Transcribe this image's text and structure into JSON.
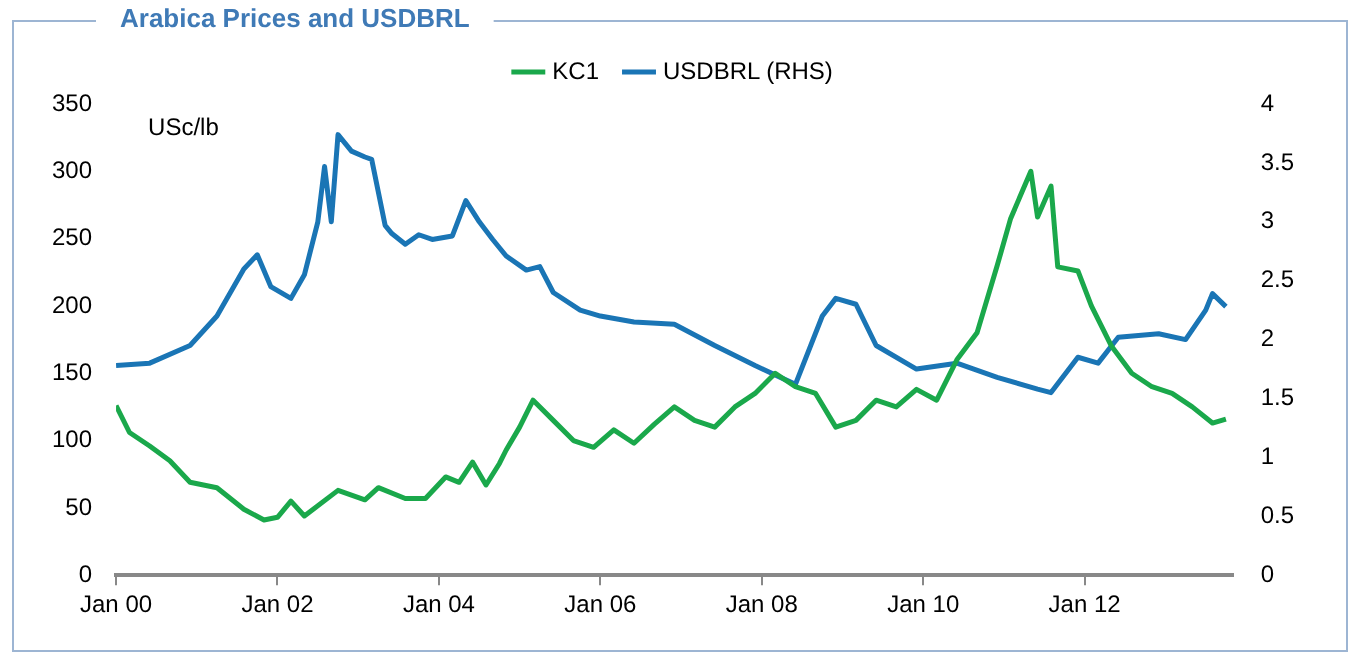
{
  "chart_data": {
    "type": "line",
    "title": "Arabica Prices and USDBRL",
    "ylabel": "USc/lb",
    "xlim": [
      "2000-01",
      "2013-11"
    ],
    "xticks": [
      {
        "value": "2000-01",
        "label": "Jan 00"
      },
      {
        "value": "2002-01",
        "label": "Jan 02"
      },
      {
        "value": "2004-01",
        "label": "Jan 04"
      },
      {
        "value": "2006-01",
        "label": "Jan 06"
      },
      {
        "value": "2008-01",
        "label": "Jan 08"
      },
      {
        "value": "2010-01",
        "label": "Jan 10"
      },
      {
        "value": "2012-01",
        "label": "Jan 12"
      }
    ],
    "ylim": [
      0,
      350
    ],
    "yticks": [
      0,
      50,
      100,
      150,
      200,
      250,
      300,
      350
    ],
    "y2lim": [
      0,
      4
    ],
    "y2ticks": [
      0,
      0.5,
      1,
      1.5,
      2,
      2.5,
      3,
      3.5,
      4
    ],
    "grid": false,
    "legend": "top",
    "marker": "none",
    "line_style": "solid",
    "series": [
      {
        "name": "KC1",
        "color": "#1aa84b",
        "x": [
          "2000-01",
          "2000-03",
          "2000-06",
          "2000-09",
          "2000-12",
          "2001-04",
          "2001-08",
          "2001-11",
          "2002-01",
          "2002-03",
          "2002-05",
          "2002-10",
          "2003-02",
          "2003-04",
          "2003-08",
          "2003-11",
          "2004-02",
          "2004-04",
          "2004-06",
          "2004-08",
          "2004-10",
          "2004-11",
          "2005-01",
          "2005-03",
          "2005-06",
          "2005-09",
          "2005-12",
          "2006-03",
          "2006-06",
          "2006-09",
          "2006-12",
          "2007-03",
          "2007-06",
          "2007-09",
          "2007-12",
          "2008-03",
          "2008-06",
          "2008-09",
          "2008-12",
          "2009-03",
          "2009-06",
          "2009-09",
          "2009-12",
          "2010-03",
          "2010-06",
          "2010-09",
          "2010-12",
          "2011-02",
          "2011-05",
          "2011-06",
          "2011-08",
          "2011-09",
          "2011-12",
          "2012-02",
          "2012-05",
          "2012-08",
          "2012-11",
          "2013-02",
          "2013-05",
          "2013-08",
          "2013-10"
        ],
        "values": [
          126,
          106,
          96,
          85,
          69,
          65,
          49,
          41,
          43,
          55,
          44,
          63,
          56,
          65,
          57,
          57,
          73,
          69,
          84,
          67,
          83,
          93,
          110,
          130,
          115,
          100,
          95,
          108,
          98,
          112,
          125,
          115,
          110,
          125,
          135,
          150,
          140,
          135,
          110,
          115,
          130,
          125,
          138,
          130,
          160,
          180,
          230,
          265,
          300,
          266,
          289,
          229,
          226,
          200,
          170,
          150,
          140,
          135,
          125,
          113,
          116
        ]
      },
      {
        "name": "USDBRL (RHS)",
        "color": "#1a75b5",
        "axis": "y2",
        "x": [
          "2000-01",
          "2000-06",
          "2000-12",
          "2001-04",
          "2001-08",
          "2001-10",
          "2001-12",
          "2002-03",
          "2002-05",
          "2002-07",
          "2002-08",
          "2002-09",
          "2002-10",
          "2002-12",
          "2003-02",
          "2003-03",
          "2003-05",
          "2003-06",
          "2003-08",
          "2003-10",
          "2003-12",
          "2004-03",
          "2004-05",
          "2004-07",
          "2004-09",
          "2004-11",
          "2005-02",
          "2005-04",
          "2005-06",
          "2005-10",
          "2006-01",
          "2006-06",
          "2006-12",
          "2007-06",
          "2007-12",
          "2008-06",
          "2008-10",
          "2008-12",
          "2009-03",
          "2009-06",
          "2009-12",
          "2010-06",
          "2010-12",
          "2011-06",
          "2011-08",
          "2011-12",
          "2012-03",
          "2012-06",
          "2012-12",
          "2013-04",
          "2013-07",
          "2013-08",
          "2013-10"
        ],
        "values": [
          1.78,
          1.8,
          1.95,
          2.2,
          2.6,
          2.72,
          2.45,
          2.35,
          2.55,
          3.0,
          3.47,
          3.0,
          3.74,
          3.6,
          3.55,
          3.53,
          2.97,
          2.9,
          2.81,
          2.89,
          2.85,
          2.88,
          3.18,
          3.0,
          2.85,
          2.71,
          2.59,
          2.62,
          2.4,
          2.25,
          2.2,
          2.15,
          2.13,
          1.95,
          1.78,
          1.62,
          2.2,
          2.35,
          2.3,
          1.95,
          1.75,
          1.8,
          1.68,
          1.58,
          1.55,
          1.85,
          1.8,
          2.02,
          2.05,
          2.0,
          2.25,
          2.39,
          2.28
        ]
      }
    ]
  }
}
